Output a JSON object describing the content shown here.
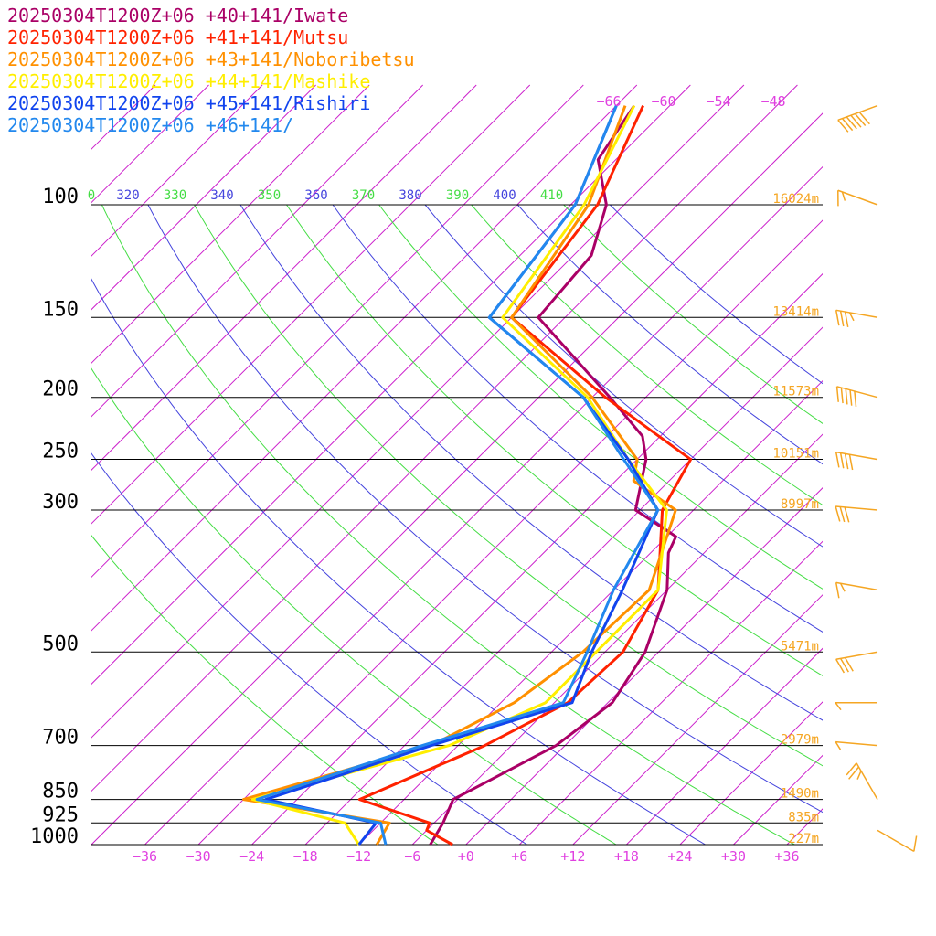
{
  "chart_data": {
    "type": "line",
    "subtype": "skew-t log-p sounding",
    "series": [
      {
        "name": "20250304T1200Z+06 +40+141/Iwate",
        "color": "#aa0066",
        "points": [
          [
            1000,
            -4
          ],
          [
            925,
            -5
          ],
          [
            850,
            -6.5
          ],
          [
            700,
            -1
          ],
          [
            600,
            0.5
          ],
          [
            500,
            -1.5
          ],
          [
            400,
            -6
          ],
          [
            350,
            -10
          ],
          [
            330,
            -11
          ],
          [
            300,
            -18.5
          ],
          [
            250,
            -23
          ],
          [
            230,
            -26
          ],
          [
            200,
            -34
          ],
          [
            150,
            -51
          ],
          [
            120,
            -52
          ],
          [
            100,
            -56
          ],
          [
            85,
            -62
          ],
          [
            70,
            -64
          ]
        ]
      },
      {
        "name": "20250304T1200Z+06 +41+141/Mutsu",
        "color": "#ff2200",
        "points": [
          [
            1000,
            -1.5
          ],
          [
            950,
            -6
          ],
          [
            925,
            -6.5
          ],
          [
            850,
            -17
          ],
          [
            700,
            -9
          ],
          [
            600,
            -4.5
          ],
          [
            500,
            -4
          ],
          [
            400,
            -7
          ],
          [
            300,
            -15.5
          ],
          [
            250,
            -18
          ],
          [
            200,
            -34.5
          ],
          [
            150,
            -54
          ],
          [
            100,
            -57
          ],
          [
            70,
            -63
          ]
        ]
      },
      {
        "name": "20250304T1200Z+06 +43+141/Noboribetsu",
        "color": "#ff9000",
        "points": [
          [
            1000,
            -10
          ],
          [
            925,
            -11
          ],
          [
            850,
            -30
          ],
          [
            700,
            -15
          ],
          [
            600,
            -10.5
          ],
          [
            500,
            -8.5
          ],
          [
            400,
            -8
          ],
          [
            300,
            -14
          ],
          [
            270,
            -22
          ],
          [
            250,
            -24
          ],
          [
            200,
            -36
          ],
          [
            150,
            -54
          ],
          [
            100,
            -58
          ],
          [
            70,
            -65
          ]
        ]
      },
      {
        "name": "20250304T1200Z+06 +44+141/Mashike",
        "color": "#ffee00",
        "points": [
          [
            1000,
            -12
          ],
          [
            925,
            -16
          ],
          [
            850,
            -29
          ],
          [
            700,
            -13
          ],
          [
            600,
            -7
          ],
          [
            500,
            -7
          ],
          [
            400,
            -7
          ],
          [
            300,
            -15
          ],
          [
            250,
            -25
          ],
          [
            200,
            -36.5
          ],
          [
            150,
            -55
          ],
          [
            100,
            -58.5
          ],
          [
            70,
            -64
          ]
        ]
      },
      {
        "name": "20250304T1200Z+06 +45+141/Rishiri",
        "color": "#1144ee",
        "points": [
          [
            1000,
            -12
          ],
          [
            925,
            -12.5
          ],
          [
            850,
            -27.5
          ],
          [
            700,
            -15
          ],
          [
            600,
            -4
          ],
          [
            500,
            -7.5
          ],
          [
            400,
            -11
          ],
          [
            300,
            -16
          ],
          [
            250,
            -25
          ],
          [
            200,
            -37
          ],
          [
            150,
            -56.5
          ],
          [
            100,
            -59.5
          ],
          [
            70,
            -66
          ]
        ]
      },
      {
        "name": "20250304T1200Z+06 +46+141/",
        "color": "#2288ee",
        "points": [
          [
            1000,
            -9
          ],
          [
            925,
            -12
          ],
          [
            850,
            -28.5
          ],
          [
            700,
            -16
          ],
          [
            600,
            -5
          ],
          [
            500,
            -8
          ],
          [
            400,
            -12
          ],
          [
            300,
            -16
          ],
          [
            250,
            -25.5
          ],
          [
            200,
            -37
          ],
          [
            150,
            -56.5
          ],
          [
            100,
            -59.5
          ],
          [
            70,
            -66
          ]
        ]
      }
    ],
    "pressure_levels": [
      {
        "label": "100",
        "p": 100
      },
      {
        "label": "150",
        "p": 150
      },
      {
        "label": "200",
        "p": 200
      },
      {
        "label": "250",
        "p": 250
      },
      {
        "label": "300",
        "p": 300
      },
      {
        "label": "500",
        "p": 500
      },
      {
        "label": "700",
        "p": 700
      },
      {
        "label": "850",
        "p": 850
      },
      {
        "label": "925",
        "p": 925
      },
      {
        "label": "1000",
        "p": 1000
      }
    ],
    "height_labels": [
      {
        "p": 100,
        "label": "16024m"
      },
      {
        "p": 150,
        "label": "13414m"
      },
      {
        "p": 200,
        "label": "11573m"
      },
      {
        "p": 250,
        "label": "10151m"
      },
      {
        "p": 300,
        "label": "8997m"
      },
      {
        "p": 500,
        "label": "5471m"
      },
      {
        "p": 700,
        "label": "2979m"
      },
      {
        "p": 850,
        "label": "1490m"
      },
      {
        "p": 925,
        "label": "835m"
      },
      {
        "p": 1000,
        "label": "227m"
      }
    ],
    "temperature_ticks": [
      {
        "t": -36,
        "label": "−36"
      },
      {
        "t": -30,
        "label": "−30"
      },
      {
        "t": -24,
        "label": "−24"
      },
      {
        "t": -18,
        "label": "−18"
      },
      {
        "t": -12,
        "label": "−12"
      },
      {
        "t": -6,
        "label": "−6"
      },
      {
        "t": 0,
        "label": "+0"
      },
      {
        "t": 6,
        "label": "+6"
      },
      {
        "t": 12,
        "label": "+12"
      },
      {
        "t": 18,
        "label": "+18"
      },
      {
        "t": 24,
        "label": "+24"
      },
      {
        "t": 30,
        "label": "+30"
      },
      {
        "t": 36,
        "label": "+36"
      }
    ],
    "upper_temperature_labels": [
      {
        "t": -66,
        "label": "−66"
      },
      {
        "t": -60,
        "label": "−60"
      },
      {
        "t": -54,
        "label": "−54"
      },
      {
        "t": -48,
        "label": "−48"
      }
    ],
    "theta_labels": [
      {
        "label": "0",
        "color": "#44dd44"
      },
      {
        "label": "320",
        "color": "#4444dd"
      },
      {
        "label": "330",
        "color": "#44dd44"
      },
      {
        "label": "340",
        "color": "#4444dd"
      },
      {
        "label": "350",
        "color": "#44dd44"
      },
      {
        "label": "360",
        "color": "#4444dd"
      },
      {
        "label": "370",
        "color": "#44dd44"
      },
      {
        "label": "380",
        "color": "#4444dd"
      },
      {
        "label": "390",
        "color": "#44dd44"
      },
      {
        "label": "400",
        "color": "#4444dd"
      },
      {
        "label": "410",
        "color": "#44dd44"
      }
    ],
    "wind_barbs": [
      {
        "p": 70,
        "dir": 250,
        "kt": 60
      },
      {
        "p": 100,
        "dir": 290,
        "kt": 15
      },
      {
        "p": 150,
        "dir": 280,
        "kt": 35
      },
      {
        "p": 200,
        "dir": 285,
        "kt": 50
      },
      {
        "p": 250,
        "dir": 280,
        "kt": 40
      },
      {
        "p": 300,
        "dir": 275,
        "kt": 30
      },
      {
        "p": 400,
        "dir": 280,
        "kt": 15
      },
      {
        "p": 500,
        "dir": 260,
        "kt": 30
      },
      {
        "p": 600,
        "dir": 270,
        "kt": 5
      },
      {
        "p": 700,
        "dir": 275,
        "kt": 5
      },
      {
        "p": 850,
        "dir": 330,
        "kt": 25
      },
      {
        "p": 950,
        "dir": 120,
        "kt": 10
      }
    ],
    "x_range_t_at_1000": [
      -42,
      40
    ],
    "p_range": [
      65,
      1000
    ],
    "y_scale": "log",
    "colors": {
      "isotherm": "#cc22cc",
      "dry_adiabat_green": "#44dd44",
      "dry_adiabat_blue": "#4444dd",
      "isobar": "#000000",
      "height_label": "#f5a623",
      "wind_barb": "#f5a623"
    }
  }
}
